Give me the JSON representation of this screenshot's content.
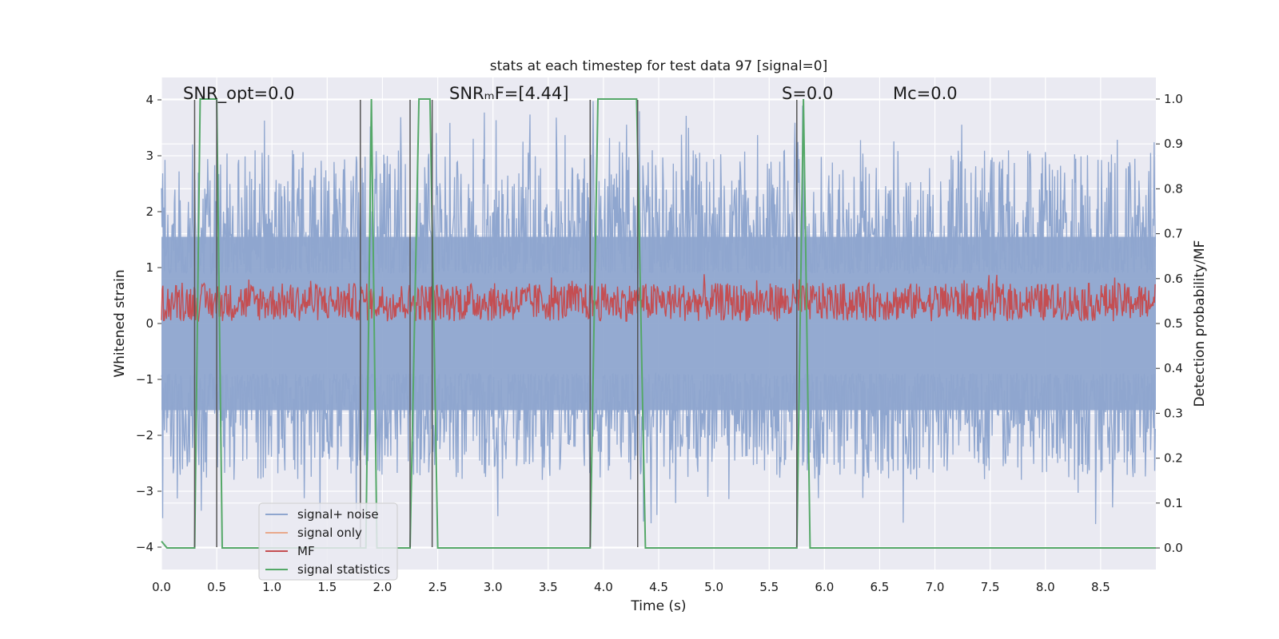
{
  "chart_data": {
    "type": "line",
    "title": "stats at each timestep for test data 97 [signal=0]",
    "xlabel": "Time (s)",
    "ylabel_left": "Whitened strain",
    "ylabel_right": "Detection probability/MF",
    "xlim": [
      0,
      9.0
    ],
    "ylim_left": [
      -4.4,
      4.4
    ],
    "ylim_right": [
      -0.048,
      1.048
    ],
    "x_ticks": [
      0.0,
      0.5,
      1.0,
      1.5,
      2.0,
      2.5,
      3.0,
      3.5,
      4.0,
      4.5,
      5.0,
      5.5,
      6.0,
      6.5,
      7.0,
      7.5,
      8.0,
      8.5
    ],
    "x_tick_labels": [
      "0.0",
      "0.5",
      "1.0",
      "1.5",
      "2.0",
      "2.5",
      "3.0",
      "3.5",
      "4.0",
      "4.5",
      "5.0",
      "5.5",
      "6.0",
      "6.5",
      "7.0",
      "7.5",
      "8.0",
      "8.5"
    ],
    "y_left_ticks": [
      -4,
      -3,
      -2,
      -1,
      0,
      1,
      2,
      3,
      4
    ],
    "y_left_tick_labels": [
      "−4",
      "−3",
      "−2",
      "−1",
      "0",
      "1",
      "2",
      "3",
      "4"
    ],
    "y_right_ticks": [
      0.0,
      0.1,
      0.2,
      0.3,
      0.4,
      0.5,
      0.6,
      0.7,
      0.8,
      0.9,
      1.0
    ],
    "y_right_tick_labels": [
      "0.0",
      "0.1",
      "0.2",
      "0.3",
      "0.4",
      "0.5",
      "0.6",
      "0.7",
      "0.8",
      "0.9",
      "1.0"
    ],
    "grid": true,
    "legend_placement": "lower-left",
    "annotations": [
      {
        "text": "SNR_opt=0.0"
      },
      {
        "text": "SNRₘF=[4.44]"
      },
      {
        "text": "S=0.0"
      },
      {
        "text": "Mᴄ=0.0"
      }
    ],
    "series": [
      {
        "name": "signal+ noise",
        "color": "#8fa6cf",
        "axis": "left",
        "description": "noisy whitened strain spanning roughly -3.6 to 4.0 across 0-9 s"
      },
      {
        "name": "signal only",
        "color": "#e9a98b",
        "axis": "left",
        "values": []
      },
      {
        "name": "MF",
        "color": "#c44e52",
        "axis": "right",
        "range": [
          0.5,
          0.62
        ]
      },
      {
        "name": "signal statistics",
        "color": "#55a868",
        "axis": "right",
        "x": [
          0.0,
          0.05,
          0.3,
          0.35,
          0.5,
          0.55,
          1.8,
          1.85,
          1.9,
          1.95,
          2.25,
          2.33,
          2.43,
          2.5,
          3.88,
          3.95,
          4.3,
          4.38,
          5.75,
          5.81,
          5.87,
          9.0
        ],
        "y": [
          0.015,
          0.0,
          0.0,
          1.0,
          1.0,
          0.0,
          0.0,
          0.0,
          1.0,
          0.0,
          0.0,
          1.0,
          1.0,
          0.0,
          0.0,
          1.0,
          1.0,
          0.0,
          0.0,
          1.0,
          0.0,
          0.0
        ]
      }
    ],
    "vertical_markers_x": [
      0.3,
      0.5,
      1.8,
      2.25,
      2.45,
      3.88,
      4.31,
      5.75
    ]
  }
}
